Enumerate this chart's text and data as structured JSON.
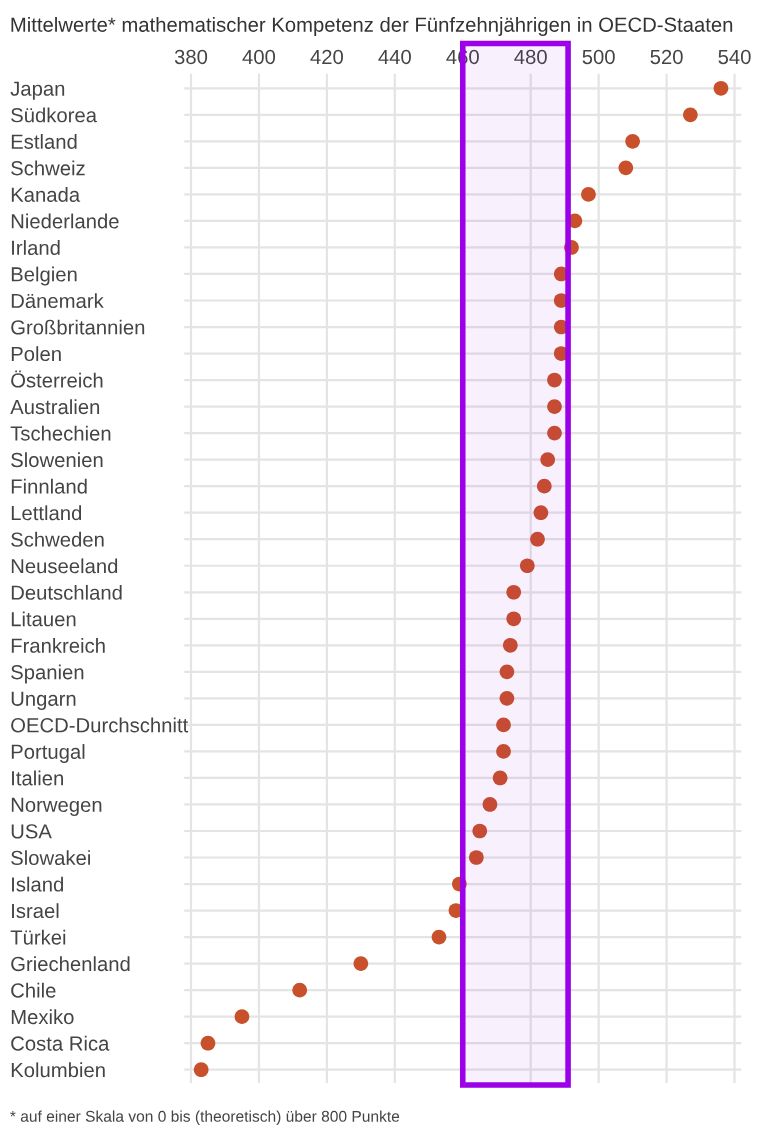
{
  "chart_data": {
    "type": "scatter",
    "title": "Mittelwerte* mathematischer Kompetenz der Fünfzehnjährigen in OECD-Staaten",
    "categories": [
      "Japan",
      "Südkorea",
      "Estland",
      "Schweiz",
      "Kanada",
      "Niederlande",
      "Irland",
      "Belgien",
      "Dänemark",
      "Großbritannien",
      "Polen",
      "Österreich",
      "Australien",
      "Tschechien",
      "Slowenien",
      "Finnland",
      "Lettland",
      "Schweden",
      "Neuseeland",
      "Deutschland",
      "Litauen",
      "Frankreich",
      "Spanien",
      "Ungarn",
      "OECD-Durchschnitt",
      "Portugal",
      "Italien",
      "Norwegen",
      "USA",
      "Slowakei",
      "Island",
      "Israel",
      "Türkei",
      "Griechenland",
      "Chile",
      "Mexiko",
      "Costa Rica",
      "Kolumbien"
    ],
    "orientation": "horizontal",
    "series": [
      {
        "color": "#c8502a",
        "values": [
          536,
          527,
          510,
          508,
          497,
          493,
          492,
          489,
          489,
          489,
          489,
          487,
          487,
          487,
          485,
          484,
          483,
          482,
          479,
          475,
          475,
          474,
          473,
          473,
          472,
          472,
          471,
          468,
          465,
          464,
          459,
          458,
          453,
          430,
          412,
          395,
          385,
          383
        ]
      }
    ],
    "xlim": [
      378,
      542
    ],
    "xticks": [
      380,
      400,
      420,
      440,
      460,
      480,
      500,
      520,
      540
    ],
    "grid": true,
    "marker": "circle",
    "bands": [
      {
        "axis": "x",
        "from": 460,
        "to": 491,
        "color": "#9b00e8"
      }
    ],
    "annotations": [
      "* auf einer Skala von 0 bis (theoretisch) über 800 Punkte"
    ]
  }
}
